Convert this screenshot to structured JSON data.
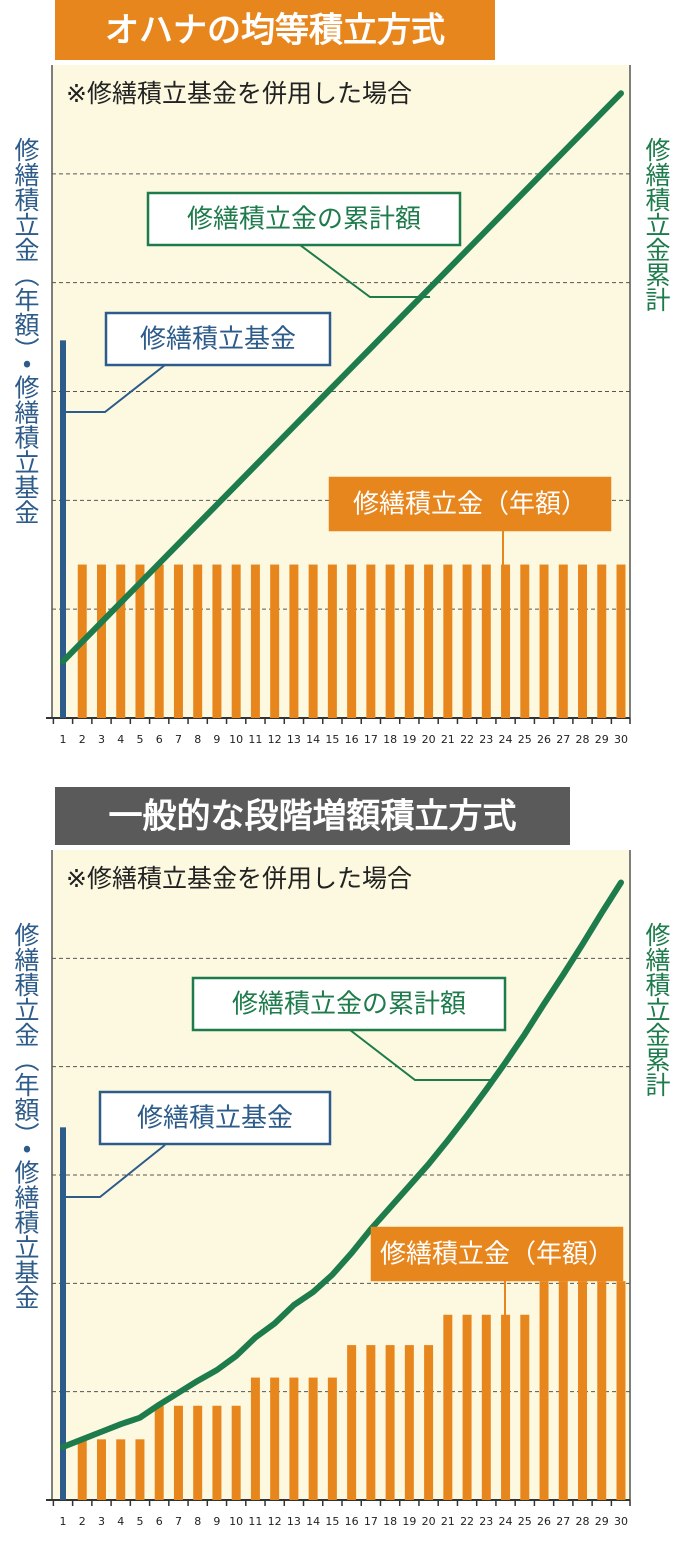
{
  "chart_data": [
    {
      "type": "bar",
      "title": "オハナの均等積立方式",
      "title_color": "#e8861e",
      "note": "※修繕積立基金を併用した場合",
      "y_label": "修繕積立金（年額）・修繕積立基金",
      "y2_label": "修繕積立金累計",
      "categories": [
        1,
        2,
        3,
        4,
        5,
        6,
        7,
        8,
        9,
        10,
        11,
        12,
        13,
        14,
        15,
        16,
        17,
        18,
        19,
        20,
        21,
        22,
        23,
        24,
        25,
        26,
        27,
        28,
        29,
        30
      ],
      "series": [
        {
          "name": "修繕積立基金",
          "color": "#2d5b8a",
          "values": [
            3.47,
            null,
            null,
            null,
            null,
            null,
            null,
            null,
            null,
            null,
            null,
            null,
            null,
            null,
            null,
            null,
            null,
            null,
            null,
            null,
            null,
            null,
            null,
            null,
            null,
            null,
            null,
            null,
            null,
            null
          ]
        },
        {
          "name": "修繕積立金（年額）",
          "color": "#e8861e",
          "values": [
            null,
            1.41,
            1.41,
            1.41,
            1.41,
            1.41,
            1.41,
            1.41,
            1.41,
            1.41,
            1.41,
            1.41,
            1.41,
            1.41,
            1.41,
            1.41,
            1.41,
            1.41,
            1.41,
            1.41,
            1.41,
            1.41,
            1.41,
            1.41,
            1.41,
            1.41,
            1.41,
            1.41,
            1.41,
            1.41
          ]
        },
        {
          "name": "修繕積立金の累計額",
          "color": "#1e7b4b",
          "type": "line",
          "axis": "y2",
          "values": [
            0.52,
            0.7,
            0.88,
            1.06,
            1.24,
            1.42,
            1.6,
            1.78,
            1.96,
            2.14,
            2.32,
            2.5,
            2.68,
            2.86,
            3.04,
            3.22,
            3.4,
            3.58,
            3.76,
            3.94,
            4.12,
            4.3,
            4.48,
            4.66,
            4.84,
            5.02,
            5.2,
            5.38,
            5.56,
            5.74
          ]
        }
      ],
      "ylim": [
        0,
        6
      ],
      "yticks": [
        1,
        2,
        3,
        4,
        5
      ],
      "y2lim": [
        0,
        6
      ],
      "grid": true
    },
    {
      "type": "bar",
      "title": "一般的な段階増額積立方式",
      "title_color": "#5a5a5a",
      "note": "※修繕積立基金を併用した場合",
      "y_label": "修繕積立金（年額）・修繕積立基金",
      "y2_label": "修繕積立金累計",
      "categories": [
        1,
        2,
        3,
        4,
        5,
        6,
        7,
        8,
        9,
        10,
        11,
        12,
        13,
        14,
        15,
        16,
        17,
        18,
        19,
        20,
        21,
        22,
        23,
        24,
        25,
        26,
        27,
        28,
        29,
        30
      ],
      "series": [
        {
          "name": "修繕積立基金",
          "color": "#2d5b8a",
          "values": [
            3.44,
            null,
            null,
            null,
            null,
            null,
            null,
            null,
            null,
            null,
            null,
            null,
            null,
            null,
            null,
            null,
            null,
            null,
            null,
            null,
            null,
            null,
            null,
            null,
            null,
            null,
            null,
            null,
            null,
            null
          ]
        },
        {
          "name": "修繕積立金（年額）",
          "color": "#e8861e",
          "values": [
            null,
            0.56,
            0.56,
            0.56,
            0.56,
            0.87,
            0.87,
            0.87,
            0.87,
            0.87,
            1.13,
            1.13,
            1.13,
            1.13,
            1.13,
            1.43,
            1.43,
            1.43,
            1.43,
            1.43,
            1.71,
            1.71,
            1.71,
            1.71,
            1.71,
            2.02,
            2.02,
            2.02,
            2.02,
            2.02
          ]
        },
        {
          "name": "修繕積立金の累計額",
          "color": "#1e7b4b",
          "type": "line",
          "axis": "y2",
          "values": [
            0.49,
            0.56,
            0.63,
            0.7,
            0.76,
            0.88,
            0.99,
            1.1,
            1.2,
            1.33,
            1.5,
            1.63,
            1.8,
            1.92,
            2.08,
            2.28,
            2.5,
            2.7,
            2.9,
            3.1,
            3.32,
            3.55,
            3.79,
            4.04,
            4.3,
            4.58,
            4.85,
            5.13,
            5.42,
            5.7
          ]
        }
      ],
      "ylim": [
        0,
        6
      ],
      "yticks": [
        1,
        2,
        3,
        4,
        5
      ],
      "y2lim": [
        0,
        6
      ],
      "grid": true
    }
  ]
}
